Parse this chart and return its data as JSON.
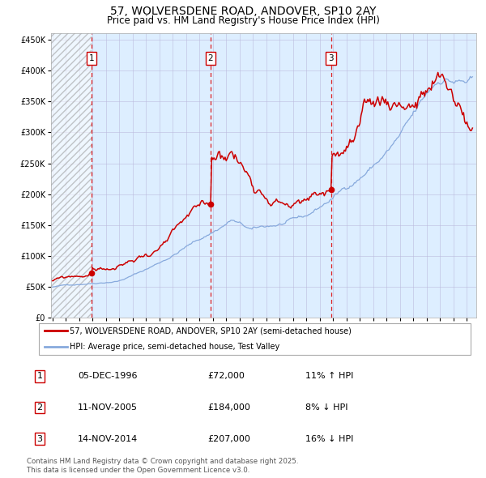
{
  "title_line1": "57, WOLVERSDENE ROAD, ANDOVER, SP10 2AY",
  "title_line2": "Price paid vs. HM Land Registry's House Price Index (HPI)",
  "ylim": [
    0,
    460000
  ],
  "yticks": [
    0,
    50000,
    100000,
    150000,
    200000,
    250000,
    300000,
    350000,
    400000,
    450000
  ],
  "ytick_labels": [
    "£0",
    "£50K",
    "£100K",
    "£150K",
    "£200K",
    "£250K",
    "£300K",
    "£350K",
    "£400K",
    "£450K"
  ],
  "sale_dates_num": [
    1996.917,
    2005.833,
    2014.833
  ],
  "sale_prices": [
    72000,
    184000,
    207000
  ],
  "sale_labels": [
    "1",
    "2",
    "3"
  ],
  "legend_red_label": "57, WOLVERSDENE ROAD, ANDOVER, SP10 2AY (semi-detached house)",
  "legend_blue_label": "HPI: Average price, semi-detached house, Test Valley",
  "table_rows": [
    {
      "num": "1",
      "date": "05-DEC-1996",
      "price": "£72,000",
      "hpi": "11% ↑ HPI"
    },
    {
      "num": "2",
      "date": "11-NOV-2005",
      "price": "£184,000",
      "hpi": "8% ↓ HPI"
    },
    {
      "num": "3",
      "date": "14-NOV-2014",
      "price": "£207,000",
      "hpi": "16% ↓ HPI"
    }
  ],
  "footer": "Contains HM Land Registry data © Crown copyright and database right 2025.\nThis data is licensed under the Open Government Licence v3.0.",
  "plot_bg": "#ddeeff",
  "grid_color": "#aaaacc",
  "red_line_color": "#cc0000",
  "blue_line_color": "#88aadd",
  "vline_color": "#dd2222",
  "dot_color": "#cc0000",
  "xlim_start": 1993.9,
  "xlim_end": 2025.7
}
